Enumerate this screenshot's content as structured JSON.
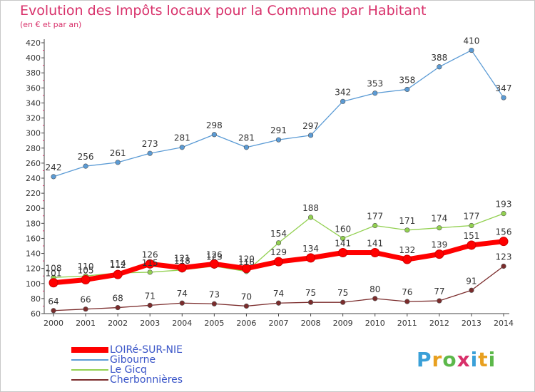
{
  "chart_data": {
    "type": "line",
    "title": "Evolution des Impôts locaux pour la Commune par Habitant",
    "subtitle": "(en € et par an)",
    "x": [
      "2000",
      "2001",
      "2002",
      "2003",
      "2004",
      "2005",
      "2006",
      "2007",
      "2008",
      "2009",
      "2010",
      "2011",
      "2012",
      "2013",
      "2014"
    ],
    "ylim": [
      60,
      420
    ],
    "yticks": [
      60,
      80,
      100,
      120,
      140,
      160,
      180,
      200,
      220,
      240,
      260,
      280,
      300,
      320,
      340,
      360,
      380,
      400,
      420
    ],
    "grid": false,
    "legend_position": "bottom-left",
    "series": [
      {
        "name": "LOIRé-SUR-NIE",
        "color": "#ff0000",
        "values": [
          101,
          105,
          112,
          126,
          121,
          126,
          120,
          129,
          134,
          141,
          141,
          132,
          139,
          151,
          156
        ]
      },
      {
        "name": "Gibourne",
        "color": "#5b9bd5",
        "values": [
          242,
          256,
          261,
          273,
          281,
          298,
          281,
          291,
          297,
          342,
          353,
          358,
          388,
          410,
          347
        ]
      },
      {
        "name": "Le Gicq",
        "color": "#92d050",
        "values": [
          108,
          110,
          114,
          115,
          118,
          123,
          116,
          154,
          188,
          160,
          177,
          171,
          174,
          177,
          193
        ]
      },
      {
        "name": "Cherbonnières",
        "color": "#7b2c2c",
        "values": [
          64,
          66,
          68,
          71,
          74,
          73,
          70,
          74,
          75,
          75,
          80,
          76,
          77,
          91,
          123
        ]
      }
    ]
  },
  "logo": {
    "letters": [
      "P",
      "r",
      "o",
      "x",
      "i",
      "t",
      "i"
    ],
    "colors": [
      "#3aa0d8",
      "#e8a020",
      "#5cb84a",
      "#d8306a",
      "#3aa0d8",
      "#e8a020",
      "#5cb84a"
    ]
  }
}
